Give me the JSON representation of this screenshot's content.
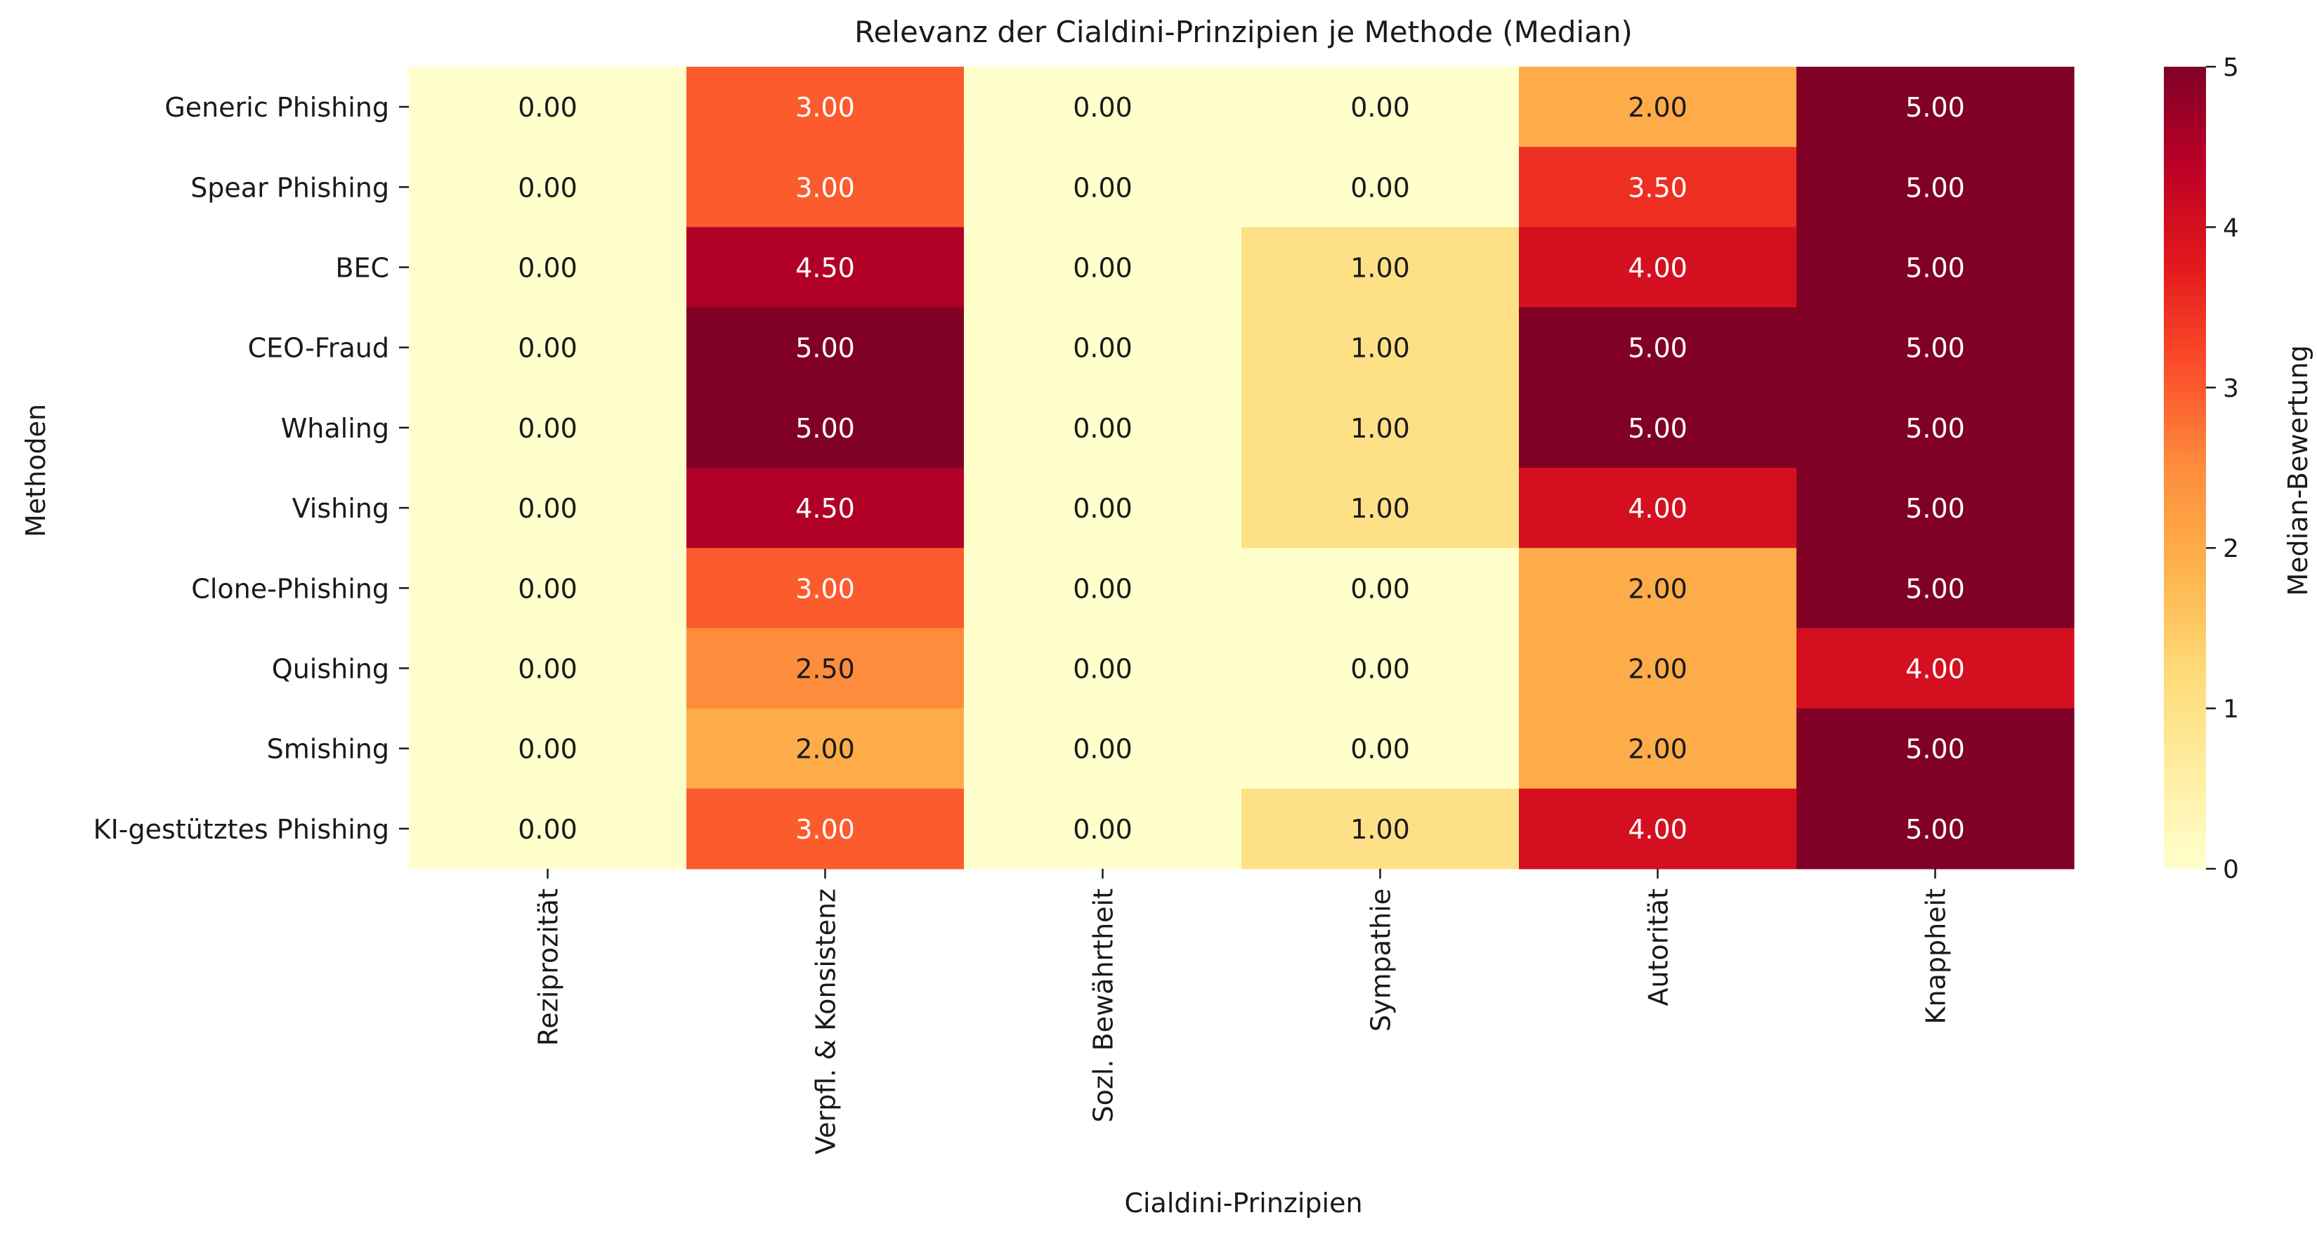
{
  "chart_data": {
    "type": "heatmap",
    "title": "Relevanz der Cialdini-Prinzipien je Methode (Median)",
    "xlabel": "Cialdini-Prinzipien",
    "ylabel": "Methoden",
    "x_categories": [
      "Reziprozität",
      "Verpfl. & Konsistenz",
      "Sozl. Bewährtheit",
      "Sympathie",
      "Autorität",
      "Knappheit"
    ],
    "y_categories": [
      "Generic Phishing",
      "Spear Phishing",
      "BEC",
      "CEO-Fraud",
      "Whaling",
      "Vishing",
      "Clone-Phishing",
      "Quishing",
      "Smishing",
      "KI-gestütztes Phishing"
    ],
    "values": [
      [
        0,
        3,
        0,
        0,
        2,
        5
      ],
      [
        0,
        3,
        0,
        0,
        3.5,
        5
      ],
      [
        0,
        4.5,
        0,
        1,
        4,
        5
      ],
      [
        0,
        5,
        0,
        1,
        5,
        5
      ],
      [
        0,
        5,
        0,
        1,
        5,
        5
      ],
      [
        0,
        4.5,
        0,
        1,
        4,
        5
      ],
      [
        0,
        3,
        0,
        0,
        2,
        5
      ],
      [
        0,
        2.5,
        0,
        0,
        2,
        4
      ],
      [
        0,
        2,
        0,
        0,
        2,
        5
      ],
      [
        0,
        3,
        0,
        1,
        4,
        5
      ]
    ],
    "value_format": "0.00",
    "colormap": "YlOrRd",
    "colormap_stops": [
      "#ffffcc",
      "#ffeda0",
      "#fed976",
      "#feb24c",
      "#fd8d3c",
      "#fc4e2a",
      "#e31a1c",
      "#bd0026",
      "#800026"
    ],
    "colorbar": {
      "label": "Median-Bewertung",
      "range": [
        0,
        5
      ],
      "ticks": [
        0,
        1,
        2,
        3,
        4,
        5
      ]
    }
  }
}
